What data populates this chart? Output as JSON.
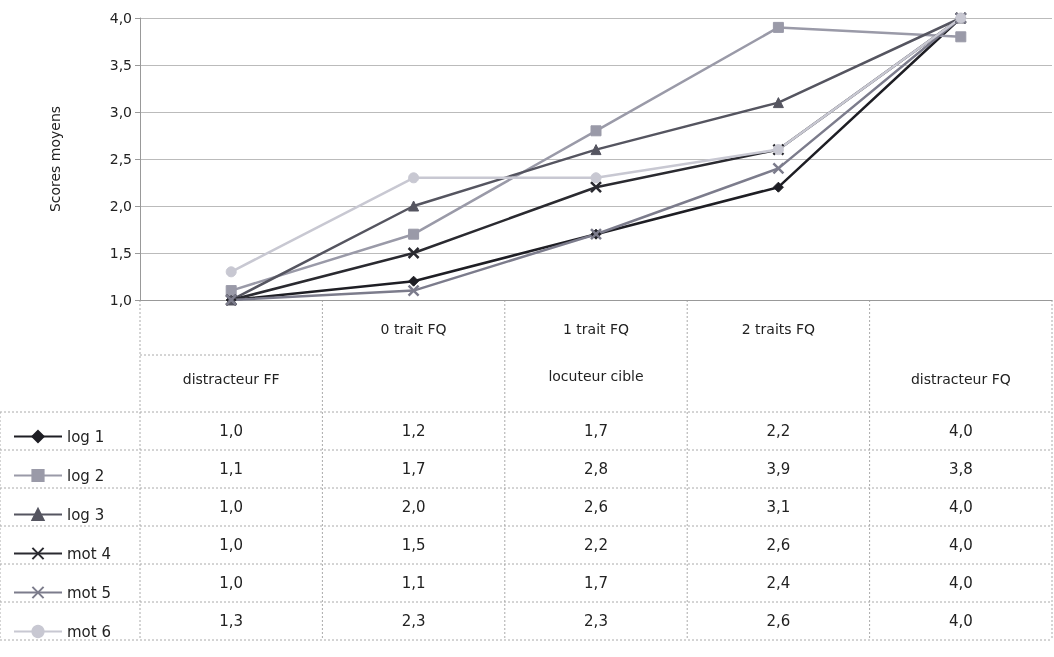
{
  "chart_data": {
    "type": "line",
    "ylabel": "Scores moyens",
    "categories": [
      "distracteur FF",
      "0 trait FQ",
      "1 trait FQ",
      "2 traits FQ",
      "distracteur FQ"
    ],
    "annotations": [
      "locuteur cible"
    ],
    "ylim": [
      1,
      4
    ],
    "yticks": [
      {
        "value": 1,
        "label": "1,0"
      },
      {
        "value": 1.5,
        "label": "1,5"
      },
      {
        "value": 2,
        "label": "2,0"
      },
      {
        "value": 2.5,
        "label": "2,5"
      },
      {
        "value": 3,
        "label": "3,0"
      },
      {
        "value": 3.5,
        "label": "3,5"
      },
      {
        "value": 4,
        "label": "4,0"
      }
    ],
    "grid": "y",
    "legend": "bottom left",
    "series": [
      {
        "name": "log 1",
        "color": "#1e1e24",
        "marker": "diamond",
        "values": [
          1.0,
          1.2,
          1.7,
          2.2,
          4.0
        ],
        "value_labels": [
          "1,0",
          "1,2",
          "1,7",
          "2,2",
          "4,0"
        ]
      },
      {
        "name": "log 2",
        "color": "#9a9aa8",
        "marker": "square",
        "values": [
          1.1,
          1.7,
          2.8,
          3.9,
          3.8
        ],
        "value_labels": [
          "1,1",
          "1,7",
          "2,8",
          "3,9",
          "3,8"
        ]
      },
      {
        "name": "log 3",
        "color": "#555560",
        "marker": "triangle",
        "values": [
          1.0,
          2.0,
          2.6,
          3.1,
          4.0
        ],
        "value_labels": [
          "1,0",
          "2,0",
          "2,6",
          "3,1",
          "4,0"
        ]
      },
      {
        "name": "mot 4",
        "color": "#2a2a30",
        "marker": "cross",
        "values": [
          1.0,
          1.5,
          2.2,
          2.6,
          4.0
        ],
        "value_labels": [
          "1,0",
          "1,5",
          "2,2",
          "2,6",
          "4,0"
        ]
      },
      {
        "name": "mot 5",
        "color": "#7c7c8c",
        "marker": "cross",
        "values": [
          1.0,
          1.1,
          1.7,
          2.4,
          4.0
        ],
        "value_labels": [
          "1,0",
          "1,1",
          "1,7",
          "2,4",
          "4,0"
        ]
      },
      {
        "name": "mot 6",
        "color": "#c8c8d2",
        "marker": "circle",
        "values": [
          1.3,
          2.3,
          2.3,
          2.6,
          4.0
        ],
        "value_labels": [
          "1,3",
          "2,3",
          "2,3",
          "2,6",
          "4,0"
        ]
      }
    ]
  }
}
